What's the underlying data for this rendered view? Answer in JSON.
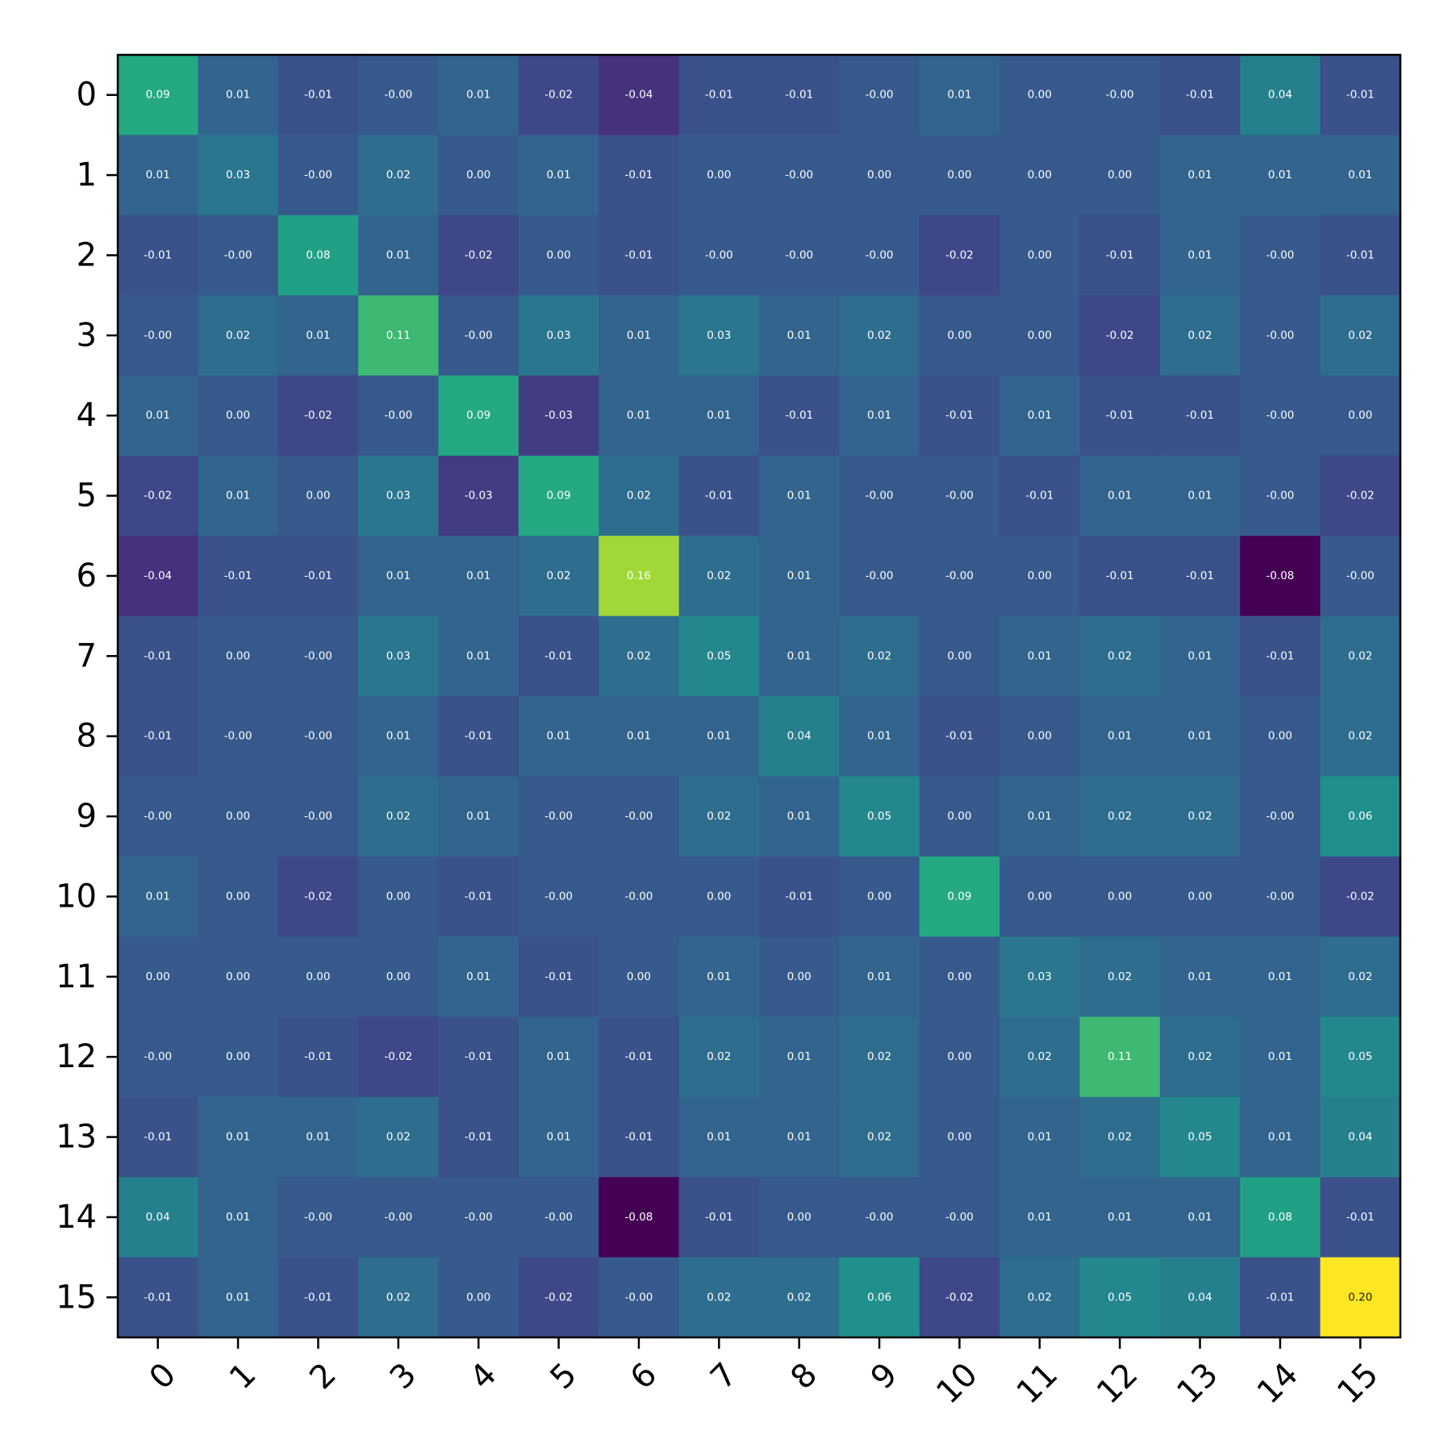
{
  "chart_data": {
    "type": "heatmap",
    "colormap": "viridis",
    "color_range": [
      -0.08,
      0.2
    ],
    "rows": [
      "0",
      "1",
      "2",
      "3",
      "4",
      "5",
      "6",
      "7",
      "8",
      "9",
      "10",
      "11",
      "12",
      "13",
      "14",
      "15"
    ],
    "columns": [
      "0",
      "1",
      "2",
      "3",
      "4",
      "5",
      "6",
      "7",
      "8",
      "9",
      "10",
      "11",
      "12",
      "13",
      "14",
      "15"
    ],
    "x_tick_rotation_deg": 45,
    "value_labels": "annotated in each cell, two decimals",
    "values": [
      [
        "0.09",
        "0.01",
        "-0.01",
        "-0.00",
        "0.01",
        "-0.02",
        "-0.04",
        "-0.01",
        "-0.01",
        "-0.00",
        "0.01",
        "0.00",
        "-0.00",
        "-0.01",
        "0.04",
        "-0.01"
      ],
      [
        "0.01",
        "0.03",
        "-0.00",
        "0.02",
        "0.00",
        "0.01",
        "-0.01",
        "0.00",
        "-0.00",
        "0.00",
        "0.00",
        "0.00",
        "0.00",
        "0.01",
        "0.01",
        "0.01"
      ],
      [
        "-0.01",
        "-0.00",
        "0.08",
        "0.01",
        "-0.02",
        "0.00",
        "-0.01",
        "-0.00",
        "-0.00",
        "-0.00",
        "-0.02",
        "0.00",
        "-0.01",
        "0.01",
        "-0.00",
        "-0.01"
      ],
      [
        "-0.00",
        "0.02",
        "0.01",
        "0.11",
        "-0.00",
        "0.03",
        "0.01",
        "0.03",
        "0.01",
        "0.02",
        "0.00",
        "0.00",
        "-0.02",
        "0.02",
        "-0.00",
        "0.02"
      ],
      [
        "0.01",
        "0.00",
        "-0.02",
        "-0.00",
        "0.09",
        "-0.03",
        "0.01",
        "0.01",
        "-0.01",
        "0.01",
        "-0.01",
        "0.01",
        "-0.01",
        "-0.01",
        "-0.00",
        "0.00"
      ],
      [
        "-0.02",
        "0.01",
        "0.00",
        "0.03",
        "-0.03",
        "0.09",
        "0.02",
        "-0.01",
        "0.01",
        "-0.00",
        "-0.00",
        "-0.01",
        "0.01",
        "0.01",
        "-0.00",
        "-0.02"
      ],
      [
        "-0.04",
        "-0.01",
        "-0.01",
        "0.01",
        "0.01",
        "0.02",
        "0.16",
        "0.02",
        "0.01",
        "-0.00",
        "-0.00",
        "0.00",
        "-0.01",
        "-0.01",
        "-0.08",
        "-0.00"
      ],
      [
        "-0.01",
        "0.00",
        "-0.00",
        "0.03",
        "0.01",
        "-0.01",
        "0.02",
        "0.05",
        "0.01",
        "0.02",
        "0.00",
        "0.01",
        "0.02",
        "0.01",
        "-0.01",
        "0.02"
      ],
      [
        "-0.01",
        "-0.00",
        "-0.00",
        "0.01",
        "-0.01",
        "0.01",
        "0.01",
        "0.01",
        "0.04",
        "0.01",
        "-0.01",
        "0.00",
        "0.01",
        "0.01",
        "0.00",
        "0.02"
      ],
      [
        "-0.00",
        "0.00",
        "-0.00",
        "0.02",
        "0.01",
        "-0.00",
        "-0.00",
        "0.02",
        "0.01",
        "0.05",
        "0.00",
        "0.01",
        "0.02",
        "0.02",
        "-0.00",
        "0.06"
      ],
      [
        "0.01",
        "0.00",
        "-0.02",
        "0.00",
        "-0.01",
        "-0.00",
        "-0.00",
        "0.00",
        "-0.01",
        "0.00",
        "0.09",
        "0.00",
        "0.00",
        "0.00",
        "-0.00",
        "-0.02"
      ],
      [
        "0.00",
        "0.00",
        "0.00",
        "0.00",
        "0.01",
        "-0.01",
        "0.00",
        "0.01",
        "0.00",
        "0.01",
        "0.00",
        "0.03",
        "0.02",
        "0.01",
        "0.01",
        "0.02"
      ],
      [
        "-0.00",
        "0.00",
        "-0.01",
        "-0.02",
        "-0.01",
        "0.01",
        "-0.01",
        "0.02",
        "0.01",
        "0.02",
        "0.00",
        "0.02",
        "0.11",
        "0.02",
        "0.01",
        "0.05"
      ],
      [
        "-0.01",
        "0.01",
        "0.01",
        "0.02",
        "-0.01",
        "0.01",
        "-0.01",
        "0.01",
        "0.01",
        "0.02",
        "0.00",
        "0.01",
        "0.02",
        "0.05",
        "0.01",
        "0.04"
      ],
      [
        "0.04",
        "0.01",
        "-0.00",
        "-0.00",
        "-0.00",
        "-0.00",
        "-0.08",
        "-0.01",
        "0.00",
        "-0.00",
        "-0.00",
        "0.01",
        "0.01",
        "0.01",
        "0.08",
        "-0.01"
      ],
      [
        "-0.01",
        "0.01",
        "-0.01",
        "0.02",
        "0.00",
        "-0.02",
        "-0.00",
        "0.02",
        "0.02",
        "0.06",
        "-0.02",
        "0.02",
        "0.05",
        "0.04",
        "-0.01",
        "0.20"
      ]
    ],
    "title": "",
    "xlabel": "",
    "ylabel": ""
  }
}
